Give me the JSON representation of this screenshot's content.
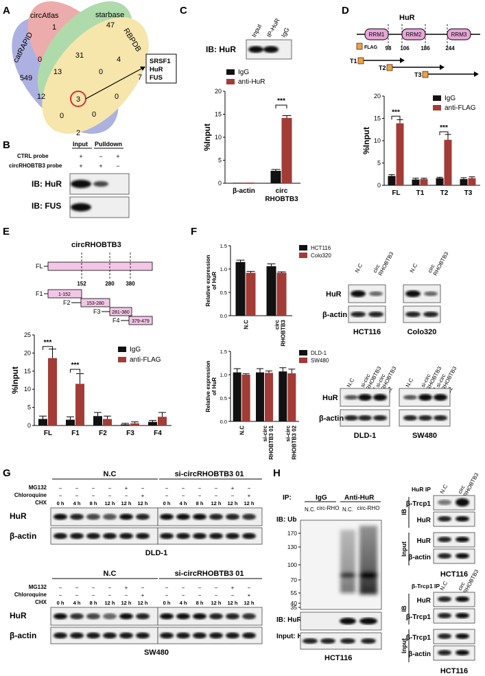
{
  "panelA": {
    "letter": "A",
    "sets": [
      "catRAPID",
      "circAtlas",
      "starbase",
      "RBPDB"
    ],
    "counts": [
      "549",
      "1",
      "47",
      "7",
      "0",
      "31",
      "4",
      "13",
      "0",
      "12",
      "3",
      "0",
      "0",
      "0",
      "2"
    ],
    "result": [
      "SRSF1",
      "HuR",
      "FUS"
    ]
  },
  "panelB": {
    "letter": "B",
    "cols": [
      "Input",
      "Pulldown"
    ],
    "rows": [
      {
        "label": "CTRL probe",
        "marks": [
          "+",
          "−",
          "+"
        ]
      },
      {
        "label": "circRHOBTB3 probe",
        "marks": [
          "+",
          "+",
          "−"
        ]
      }
    ],
    "blots": [
      "IB: HuR",
      "IB: FUS"
    ]
  },
  "panelC": {
    "letter": "C",
    "blot_cols": [
      "Input",
      "IP-HuR",
      "IgG"
    ],
    "blot_label": "IB: HuR",
    "sig": "***"
  },
  "panelD": {
    "letter": "D",
    "title": "HuR",
    "domains": [
      "RRM1",
      "RRM2",
      "RRM3"
    ],
    "positions": [
      "98",
      "106",
      "186",
      "244"
    ],
    "flag": "FLAG",
    "truncs": [
      "T1",
      "T2",
      "T3"
    ],
    "sig": [
      "***",
      "***"
    ]
  },
  "panelE": {
    "letter": "E",
    "title": "circRHOBTB3",
    "fl": "FL",
    "positions": [
      "152",
      "280",
      "380"
    ],
    "fragments": [
      {
        "name": "F1",
        "range": "1-152"
      },
      {
        "name": "F2",
        "range": "153-280"
      },
      {
        "name": "F3",
        "range": "281-380"
      },
      {
        "name": "F4",
        "range": "379-479"
      }
    ],
    "sig": [
      "***",
      "***"
    ]
  },
  "panelF": {
    "letter": "F",
    "blot_top_cols": [
      "N.C",
      "circ RHOBTB3"
    ],
    "blot_top_cells": [
      "HCT116",
      "Colo320"
    ],
    "blot_bot_cols": [
      "N.C",
      "si-circ RHOBTB3 01",
      "si-circ RHOBTB3 02"
    ],
    "blot_bot_cells": [
      "DLD-1",
      "SW480"
    ],
    "rows": [
      "HuR",
      "β-actin"
    ]
  },
  "panelG": {
    "letter": "G",
    "groups": [
      "N.C",
      "si-circRHOBTB3 01"
    ],
    "treatments": [
      "MG132",
      "Chloroquine",
      "CHX"
    ],
    "mg132": [
      "−",
      "−",
      "−",
      "−",
      "+",
      "−"
    ],
    "chloroquine": [
      "−",
      "−",
      "−",
      "−",
      "−",
      "+"
    ],
    "times": [
      "0 h",
      "4 h",
      "8 h",
      "12 h",
      "12 h",
      "12 h"
    ],
    "rows": [
      "HuR",
      "β-actin"
    ],
    "cells": [
      "DLD-1",
      "SW480"
    ]
  },
  "panelH": {
    "letter": "H",
    "ip_label": "IP:",
    "ip_groups": [
      "IgG",
      "Anti-HuR"
    ],
    "lanes": [
      "N.C.",
      "circ-RHO",
      "N.C.",
      "circ-RHO"
    ],
    "ub_label": "IB: Ub",
    "markers": [
      "170",
      "130",
      "100",
      "70",
      "55",
      "40",
      "35"
    ],
    "ib_hur": "IB: HuR",
    "input_hur": "Input: HuR",
    "cell": "HCT116",
    "right_top_title": "HuR IP",
    "right_bot_title": "β-Trcp1 IP",
    "right_cols": [
      "N.C",
      "circ RHOBTB3"
    ],
    "top_rows": [
      "β-Trcp1",
      "HuR",
      "HuR",
      "β-actin"
    ],
    "bot_rows": [
      "HuR",
      "β-Trcp1",
      "β-Trcp1",
      "β-actin"
    ],
    "side": [
      "IB",
      "Input"
    ]
  },
  "chart_data": [
    {
      "type": "bar",
      "panel": "C",
      "categories": [
        "β-actin",
        "circ RHOBTB3"
      ],
      "series": [
        {
          "name": "IgG",
          "values": [
            0.1,
            2.7
          ],
          "color": "#111111"
        },
        {
          "name": "anti-HuR",
          "values": [
            0.15,
            14.2
          ],
          "color": "#a33b36"
        }
      ],
      "ylabel": "%Input",
      "ylim": [
        0,
        20
      ],
      "yticks": [
        "0",
        "5",
        "10",
        "15",
        "20"
      ]
    },
    {
      "type": "bar",
      "panel": "D",
      "categories": [
        "FL",
        "T1",
        "T2",
        "T3"
      ],
      "series": [
        {
          "name": "IgG",
          "values": [
            2.1,
            1.3,
            1.6,
            1.4
          ],
          "color": "#111111"
        },
        {
          "name": "anti-FLAG",
          "values": [
            13.9,
            1.4,
            10.2,
            1.6
          ],
          "color": "#a33b36"
        }
      ],
      "ylabel": "%Input",
      "ylim": [
        0,
        20
      ],
      "yticks": [
        "0",
        "5",
        "10",
        "15",
        "20"
      ]
    },
    {
      "type": "bar",
      "panel": "E",
      "categories": [
        "FL",
        "F1",
        "F2",
        "F3",
        "F4"
      ],
      "series": [
        {
          "name": "IgG",
          "values": [
            1.8,
            1.6,
            2.6,
            0.3,
            1.0
          ],
          "color": "#111111"
        },
        {
          "name": "anti-FLAG",
          "values": [
            18.6,
            11.5,
            1.8,
            0.6,
            2.4
          ],
          "color": "#a33b36"
        }
      ],
      "ylabel": "%Input",
      "ylim": [
        0,
        25
      ],
      "yticks": [
        "0",
        "5",
        "10",
        "15",
        "20",
        "25"
      ]
    },
    {
      "type": "bar",
      "panel": "F-top",
      "categories": [
        "N.C",
        "circ RHOBTB3"
      ],
      "series": [
        {
          "name": "HCT116",
          "values": [
            1.15,
            1.06
          ],
          "color": "#111111"
        },
        {
          "name": "Colo320",
          "values": [
            0.92,
            0.92
          ],
          "color": "#a33b36"
        }
      ],
      "ylabel": "Relative expression of HuR",
      "ylim": [
        0,
        1.5
      ],
      "yticks": [
        "0.0",
        "0.5",
        "1.0",
        "1.5"
      ]
    },
    {
      "type": "bar",
      "panel": "F-bottom",
      "categories": [
        "N.C",
        "si-circ RHOBTB3 01",
        "si-circ RHOBTB3 02"
      ],
      "series": [
        {
          "name": "DLD-1",
          "values": [
            1.05,
            1.05,
            1.07
          ],
          "color": "#111111"
        },
        {
          "name": "SW480",
          "values": [
            1.0,
            1.04,
            1.03
          ],
          "color": "#a33b36"
        }
      ],
      "ylabel": "Relative expression of HuR",
      "ylim": [
        0,
        1.5
      ],
      "yticks": [
        "0.0",
        "0.5",
        "1.0",
        "1.5"
      ]
    }
  ]
}
